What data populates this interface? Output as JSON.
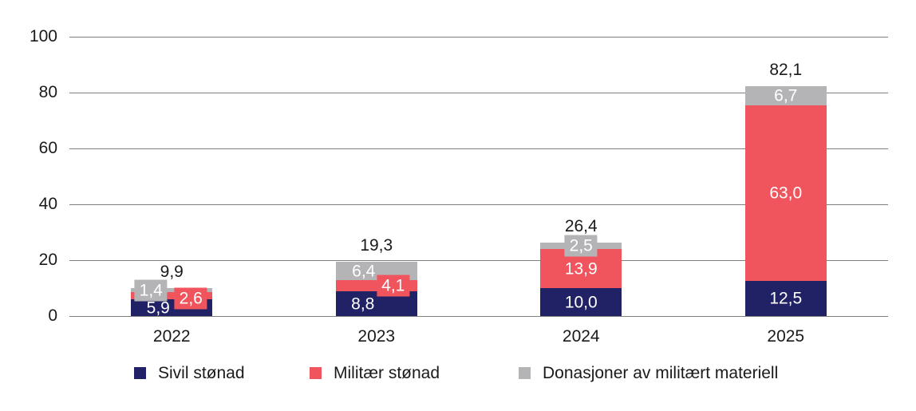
{
  "chart_data": {
    "type": "bar",
    "stacked": true,
    "title": "",
    "xlabel": "",
    "ylabel": "",
    "categories": [
      "2022",
      "2023",
      "2024",
      "2025"
    ],
    "series": [
      {
        "name": "Sivil stønad",
        "color": "#212266",
        "values": [
          5.9,
          8.8,
          10.0,
          12.5
        ],
        "value_labels": [
          "5,9",
          "8,8",
          "10,0",
          "12,5"
        ]
      },
      {
        "name": "Militær stønad",
        "color": "#f0555d",
        "values": [
          2.6,
          4.1,
          13.9,
          63.0
        ],
        "value_labels": [
          "2,6",
          "4,1",
          "13,9",
          "63,0"
        ]
      },
      {
        "name": "Donasjoner av militært materiell",
        "color": "#b4b4b6",
        "values": [
          1.4,
          6.4,
          2.5,
          6.7
        ],
        "value_labels": [
          "1,4",
          "6,4",
          "2,5",
          "6,7"
        ]
      }
    ],
    "totals": [
      9.9,
      19.3,
      26.4,
      82.1
    ],
    "total_labels": [
      "9,9",
      "19,3",
      "26,4",
      "82,1"
    ],
    "ylim": [
      0,
      100
    ],
    "yticks": [
      0,
      20,
      40,
      60,
      80,
      100
    ],
    "ytick_labels": [
      "0",
      "20",
      "40",
      "60",
      "80",
      "100"
    ],
    "grid": true,
    "legend_position": "bottom",
    "label_text_color": "#ffffff",
    "axis_text_color": "#1a1a1a",
    "gridline_color": "#7f7f7f"
  }
}
